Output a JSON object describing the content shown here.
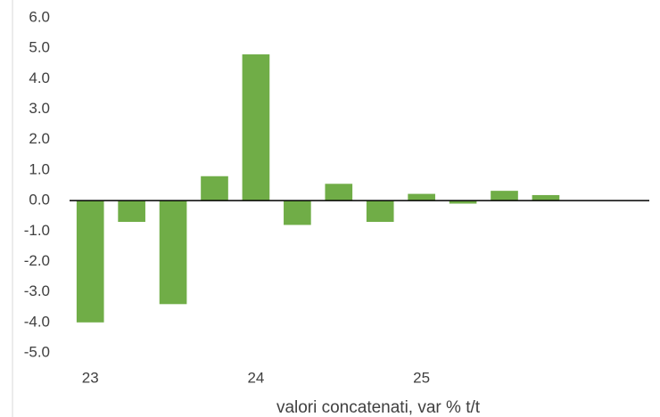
{
  "chart_data": {
    "type": "bar",
    "x_label": "valori concatenati, var % t/t",
    "categories": [
      "23",
      null,
      null,
      null,
      "24",
      null,
      null,
      null,
      "25",
      null,
      null,
      null,
      null,
      null
    ],
    "values": [
      -4.0,
      -0.7,
      -3.4,
      0.8,
      4.8,
      -0.8,
      0.55,
      -0.7,
      0.22,
      -0.1,
      0.32,
      0.18,
      null,
      null
    ],
    "color": "#70ad47",
    "ylim": [
      -5,
      6
    ],
    "yticks": [
      {
        "value": -5,
        "label": "-5.0"
      },
      {
        "value": -4,
        "label": "-4.0"
      },
      {
        "value": -3,
        "label": "-3.0"
      },
      {
        "value": -2,
        "label": "-2.0"
      },
      {
        "value": -1,
        "label": "-1.0"
      },
      {
        "value": 0,
        "label": "0.0"
      },
      {
        "value": 1,
        "label": "1.0"
      },
      {
        "value": 2,
        "label": "2.0"
      },
      {
        "value": 3,
        "label": "3.0"
      },
      {
        "value": 4,
        "label": "4.0"
      },
      {
        "value": 5,
        "label": "5.0"
      },
      {
        "value": 6,
        "label": "6.0"
      }
    ],
    "grid": false
  }
}
